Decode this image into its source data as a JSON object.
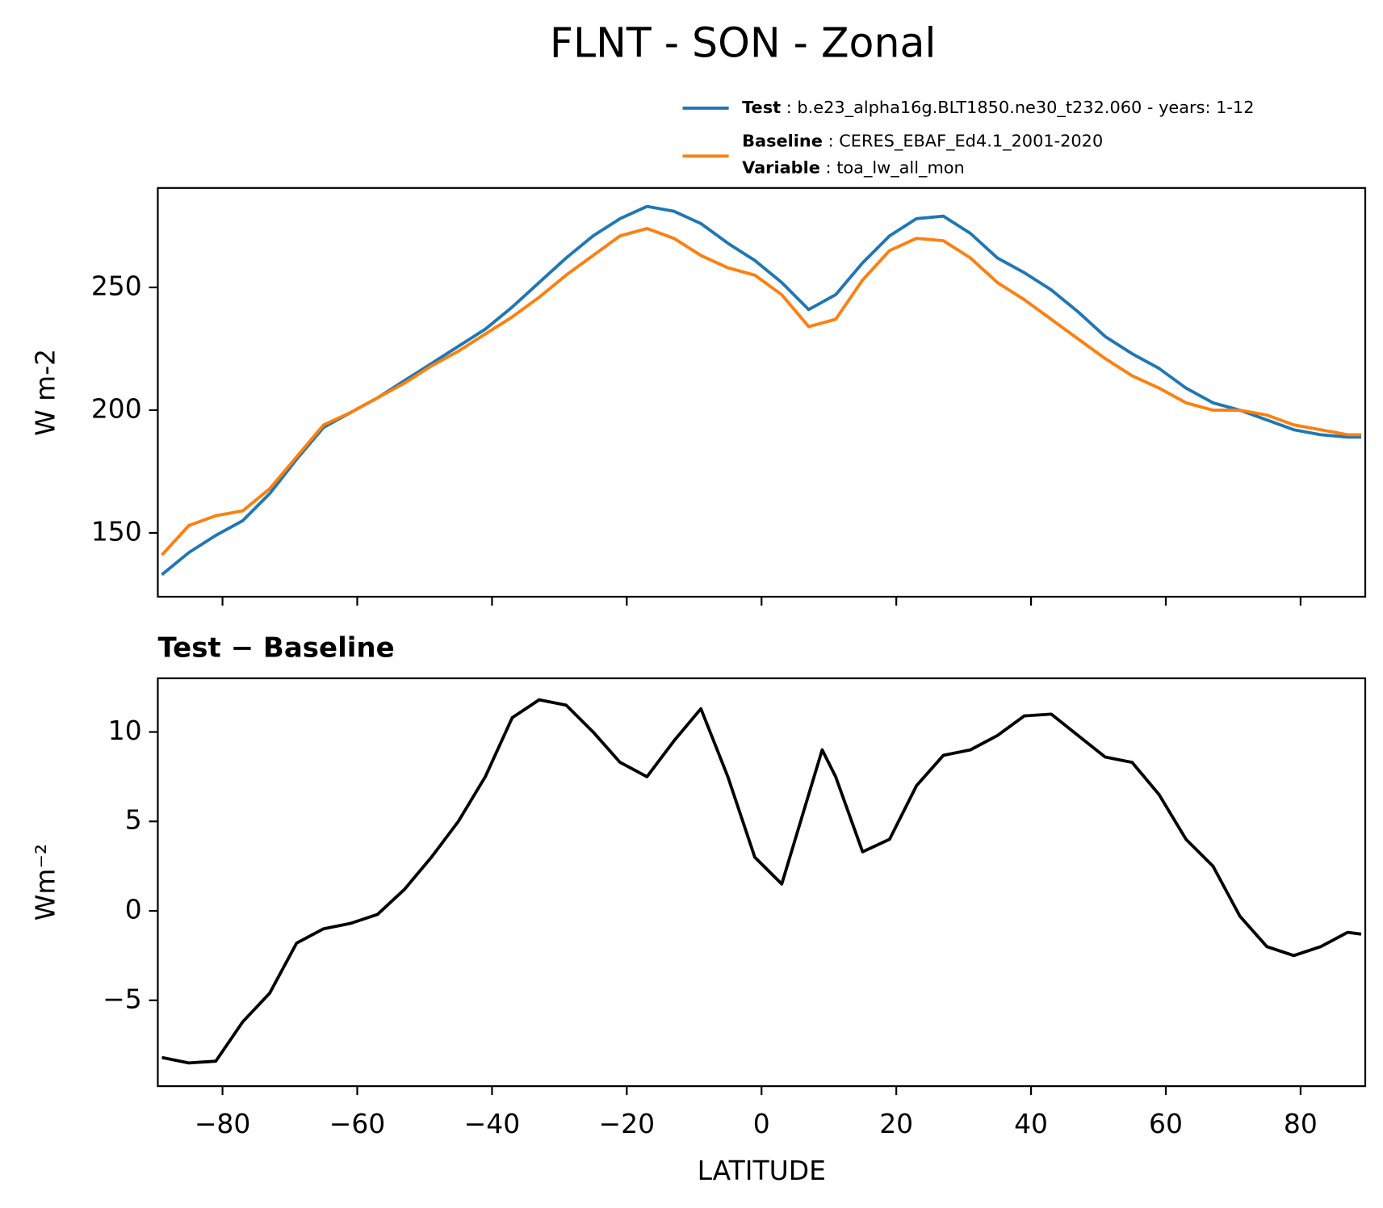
{
  "title": "FLNT - SON - Zonal",
  "legend": {
    "test_label": "Test",
    "test_text": "b.e23_alpha16g.BLT1850.ne30_t232.060 - years: 1-12",
    "base_label": "Baseline",
    "base_text": "CERES_EBAF_Ed4.1_2001-2020",
    "var_label": "Variable",
    "var_text": "toa_lw_all_mon"
  },
  "chart_data": [
    {
      "type": "line",
      "ylabel": "W m-2",
      "xlim": [
        -89.6,
        89.6
      ],
      "ylim": [
        124,
        290.5
      ],
      "yticks": [
        150,
        200,
        250
      ],
      "xticks": [
        -80,
        -60,
        -40,
        -20,
        0,
        20,
        40,
        60,
        80
      ],
      "x": [
        -89,
        -85,
        -81,
        -77,
        -73,
        -69,
        -65,
        -61,
        -57,
        -53,
        -49,
        -45,
        -41,
        -37,
        -33,
        -29,
        -25,
        -21,
        -17,
        -13,
        -9,
        -5,
        -1,
        3,
        7,
        11,
        15,
        19,
        23,
        27,
        31,
        35,
        39,
        43,
        47,
        51,
        55,
        59,
        63,
        67,
        71,
        75,
        79,
        83,
        87,
        89
      ],
      "series": [
        {
          "name": "Test",
          "color": "#1f77b4",
          "values": [
            133,
            142,
            149,
            155,
            166,
            180,
            193,
            199,
            205,
            212,
            219,
            226,
            233,
            242,
            252,
            262,
            271,
            278,
            283,
            281,
            276,
            268,
            261,
            252,
            241,
            247,
            260,
            271,
            278,
            279,
            272,
            262,
            256,
            249,
            240,
            230,
            223,
            217,
            209,
            203,
            200,
            196,
            192,
            190,
            189,
            189
          ]
        },
        {
          "name": "Baseline",
          "color": "#ff7f0e",
          "values": [
            141,
            153,
            157,
            159,
            168,
            181,
            194,
            199,
            205,
            211,
            218,
            224,
            231,
            238,
            246,
            255,
            263,
            271,
            274,
            270,
            263,
            258,
            255,
            247,
            234,
            237,
            253,
            265,
            270,
            269,
            262,
            252,
            245,
            237,
            229,
            221,
            214,
            209,
            203,
            200,
            200,
            198,
            194,
            192,
            190,
            190
          ]
        }
      ]
    },
    {
      "type": "line",
      "title": "Test − Baseline",
      "ylabel": "Wm⁻²",
      "xlabel": "LATITUDE",
      "xlim": [
        -89.6,
        89.6
      ],
      "ylim": [
        -9.8,
        13
      ],
      "yticks": [
        {
          "value": -5,
          "label": "−5"
        },
        0,
        5,
        10
      ],
      "xticks": [
        {
          "value": -80,
          "label": "−80"
        },
        {
          "value": -60,
          "label": "−60"
        },
        {
          "value": -40,
          "label": "−40"
        },
        {
          "value": -20,
          "label": "−20"
        },
        0,
        20,
        40,
        60,
        80
      ],
      "x": [
        -89,
        -85,
        -81,
        -77,
        -73,
        -69,
        -65,
        -61,
        -57,
        -53,
        -49,
        -45,
        -41,
        -37,
        -33,
        -29,
        -25,
        -21,
        -17,
        -13,
        -9,
        -5,
        -1,
        3,
        7,
        9,
        11,
        15,
        19,
        23,
        27,
        31,
        35,
        39,
        43,
        47,
        51,
        55,
        59,
        63,
        67,
        71,
        75,
        79,
        83,
        87,
        89
      ],
      "series": [
        {
          "name": "Test − Baseline",
          "color": "#000000",
          "values": [
            -8.2,
            -8.5,
            -8.4,
            -6.2,
            -4.6,
            -1.8,
            -1,
            -0.7,
            -0.2,
            1.2,
            3,
            5,
            7.5,
            10.8,
            11.8,
            11.5,
            10,
            8.3,
            7.5,
            9.5,
            11.3,
            7.5,
            3,
            1.5,
            6.5,
            9,
            7.5,
            3.3,
            4,
            7,
            8.7,
            9,
            9.8,
            10.9,
            11,
            9.8,
            8.6,
            8.3,
            6.5,
            4,
            2.5,
            -0.3,
            -2,
            -2.5,
            -2,
            -1.2,
            -1.3
          ]
        }
      ]
    }
  ]
}
